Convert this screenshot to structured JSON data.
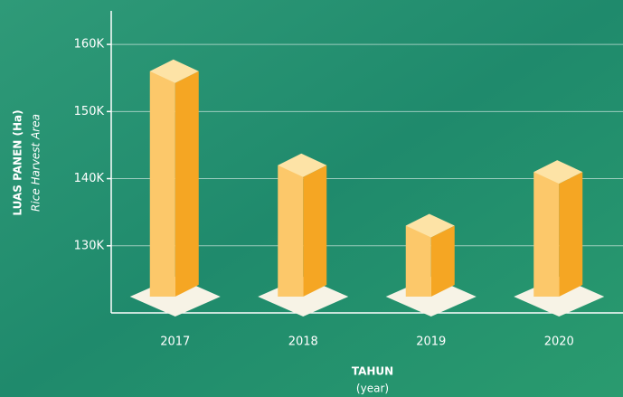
{
  "chart_data": {
    "type": "bar",
    "y_axis_label": "LUAS PANEN (Ha)",
    "y_axis_sublabel": "Rice Harvest Area",
    "x_axis_label": "TAHUN",
    "x_axis_sublabel": "(year)",
    "categories": [
      "2017",
      "2018",
      "2019",
      "2020"
    ],
    "values": [
      156000,
      142000,
      133000,
      141000
    ],
    "color": "#f5a623",
    "ylim": [
      120000,
      165000
    ],
    "yticks": [
      {
        "value": 130000,
        "label": "130K"
      },
      {
        "value": 140000,
        "label": "140K"
      },
      {
        "value": 150000,
        "label": "150K"
      },
      {
        "value": 160000,
        "label": "160K"
      }
    ],
    "grid": true
  }
}
